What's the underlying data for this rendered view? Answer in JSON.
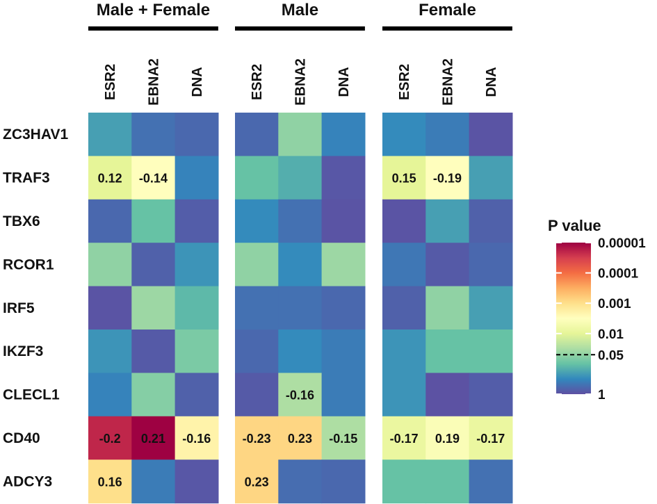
{
  "chart_data": {
    "type": "heatmap",
    "groups": [
      "Male + Female",
      "Male",
      "Female"
    ],
    "columns": [
      "ESR2",
      "EBNA2",
      "DNA"
    ],
    "rows": [
      "ZC3HAV1",
      "TRAF3",
      "TBX6",
      "RCOR1",
      "IRF5",
      "IKZF3",
      "CLECL1",
      "CD40",
      "ADCY3"
    ],
    "p_values": [
      [
        0.2,
        0.5,
        0.6,
        0.6,
        0.05,
        0.35,
        0.3,
        0.4,
        0.9
      ],
      [
        0.01,
        0.003,
        0.35,
        0.1,
        0.15,
        0.85,
        0.01,
        0.003,
        0.2
      ],
      [
        0.6,
        0.1,
        0.75,
        0.3,
        0.5,
        0.9,
        0.9,
        0.2,
        0.7
      ],
      [
        0.05,
        0.7,
        0.25,
        0.05,
        0.3,
        0.04,
        0.45,
        0.8,
        0.6
      ],
      [
        0.9,
        0.04,
        0.12,
        0.5,
        0.5,
        0.6,
        0.7,
        0.05,
        0.2
      ],
      [
        0.25,
        0.8,
        0.07,
        0.6,
        0.3,
        0.4,
        0.25,
        0.1,
        0.1
      ],
      [
        0.35,
        0.06,
        0.7,
        0.8,
        0.03,
        0.4,
        0.25,
        0.95,
        0.75
      ],
      [
        2e-05,
        1e-05,
        0.002,
        0.0008,
        0.0008,
        0.03,
        0.008,
        0.004,
        0.008
      ],
      [
        0.001,
        0.4,
        0.85,
        0.0008,
        0.55,
        0.6,
        0.1,
        0.1,
        0.5
      ]
    ],
    "cell_labels": [
      [
        "",
        "",
        "",
        "",
        "",
        "",
        "",
        "",
        ""
      ],
      [
        "0.12",
        "-0.14",
        "",
        "",
        "",
        "",
        "0.15",
        "-0.19",
        ""
      ],
      [
        "",
        "",
        "",
        "",
        "",
        "",
        "",
        "",
        ""
      ],
      [
        "",
        "",
        "",
        "",
        "",
        "",
        "",
        "",
        ""
      ],
      [
        "",
        "",
        "",
        "",
        "",
        "",
        "",
        "",
        ""
      ],
      [
        "",
        "",
        "",
        "",
        "",
        "",
        "",
        "",
        ""
      ],
      [
        "",
        "",
        "",
        "",
        "-0.16",
        "",
        "",
        "",
        ""
      ],
      [
        "-0.2",
        "0.21",
        "-0.16",
        "-0.23",
        "0.23",
        "-0.15",
        "-0.17",
        "0.19",
        "-0.17"
      ],
      [
        "0.16",
        "",
        "",
        "0.23",
        "",
        "",
        "",
        "",
        ""
      ]
    ],
    "legend": {
      "title": "P value",
      "ticks": [
        "0.00001",
        "0.0001",
        "0.001",
        "0.01",
        "0.05",
        "1"
      ],
      "tick_values": [
        1e-05,
        0.0001,
        0.001,
        0.01,
        0.05,
        1
      ],
      "threshold": 0.05,
      "color_scale": [
        "#5e4fa2",
        "#3288bd",
        "#66c2a5",
        "#abdda4",
        "#e6f598",
        "#ffffbf",
        "#fee08b",
        "#fdae61",
        "#f46d43",
        "#d53e4f",
        "#9e0142"
      ]
    }
  }
}
